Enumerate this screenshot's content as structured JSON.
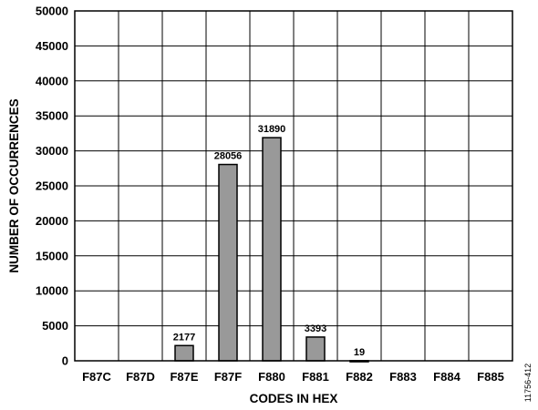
{
  "chart_data": {
    "type": "bar",
    "xlabel": "CODES IN HEX",
    "ylabel": "NUMBER OF OCCURRENCES",
    "ylim": [
      0,
      50000
    ],
    "yticks": [
      0,
      5000,
      10000,
      15000,
      20000,
      25000,
      30000,
      35000,
      40000,
      45000,
      50000
    ],
    "categories": [
      "F87C",
      "F87D",
      "F87E",
      "F87F",
      "F880",
      "F881",
      "F882",
      "F883",
      "F884",
      "F885"
    ],
    "values": [
      0,
      0,
      2177,
      28056,
      31890,
      3393,
      19,
      0,
      0,
      0
    ],
    "data_labels": [
      "",
      "",
      "2177",
      "28056",
      "31890",
      "3393",
      "19",
      "",
      "",
      ""
    ],
    "grid": true,
    "bar_color": "#999999",
    "figure_id": "11756-412"
  }
}
